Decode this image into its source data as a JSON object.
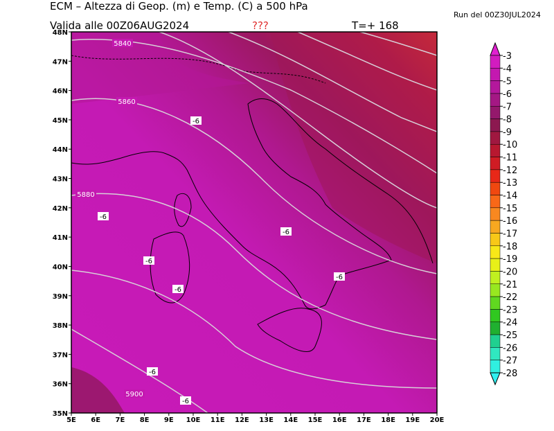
{
  "header": {
    "title": "ECM – Altezza di Geop. (m) e Temp. (C) a 500 hPa",
    "valid": "Valida alle 00Z06AUG2024",
    "flag": "???",
    "step": "T=+ 168",
    "run": "Run del 00Z30JUL2024"
  },
  "axes": {
    "lat": [
      "48N",
      "47N",
      "46N",
      "45N",
      "44N",
      "43N",
      "42N",
      "41N",
      "40N",
      "39N",
      "38N",
      "37N",
      "36N",
      "35N"
    ],
    "lon": [
      "5E",
      "6E",
      "7E",
      "8E",
      "9E",
      "10E",
      "11E",
      "12E",
      "13E",
      "14E",
      "15E",
      "16E",
      "17E",
      "18E",
      "19E",
      "20E"
    ]
  },
  "contour_labels": [
    "5840",
    "5860",
    "5880",
    "5900"
  ],
  "temp_labels": [
    "-6",
    "-6",
    "-6",
    "-6",
    "-6",
    "-6",
    "-6",
    "-6"
  ],
  "colorbar": {
    "labels": [
      "-3",
      "-4",
      "-5",
      "-6",
      "-7",
      "-8",
      "-9",
      "-10",
      "-11",
      "-12",
      "-13",
      "-14",
      "-15",
      "-16",
      "-17",
      "-18",
      "-19",
      "-20",
      "-21",
      "-22",
      "-23",
      "-24",
      "-25",
      "-26",
      "-27",
      "-28"
    ],
    "colors": [
      "#e020d0",
      "#d21cc0",
      "#c418b0",
      "#b4189c",
      "#a41884",
      "#94186c",
      "#8c1850",
      "#a01840",
      "#b81830",
      "#d01c24",
      "#e82818",
      "#f04810",
      "#f86818",
      "#f88820",
      "#f8a820",
      "#f8c818",
      "#f8e818",
      "#e8f018",
      "#c0f020",
      "#98e820",
      "#60d820",
      "#30c820",
      "#20b030",
      "#20d090",
      "#30e8c0",
      "#30f0e0",
      "#30f0f0"
    ]
  }
}
